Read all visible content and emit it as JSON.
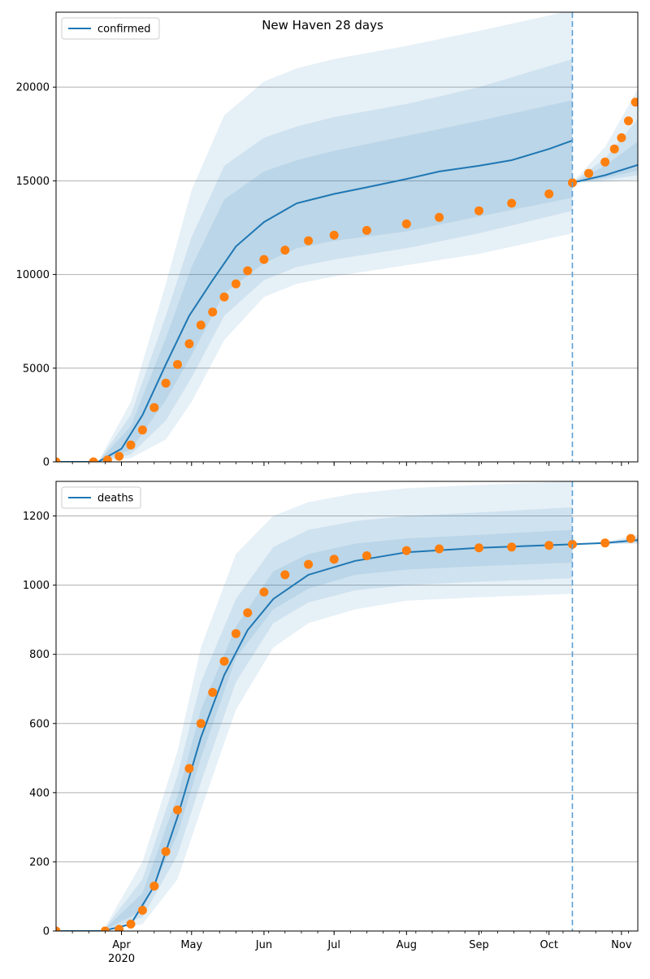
{
  "title": "New Haven 28 days",
  "chart_data": [
    {
      "type": "line",
      "legend": "confirmed",
      "legend_placement": "top-left",
      "grid": "horizontal",
      "xlim": [
        "2020-03-04",
        "2020-11-08"
      ],
      "ylim": [
        0,
        24000
      ],
      "yticks": [
        0,
        5000,
        10000,
        15000,
        20000
      ],
      "forecast_start": "2020-10-11",
      "model_median": [
        {
          "x": "2020-03-04",
          "y": 0
        },
        {
          "x": "2020-03-22",
          "y": 0
        },
        {
          "x": "2020-04-01",
          "y": 700
        },
        {
          "x": "2020-04-10",
          "y": 2500
        },
        {
          "x": "2020-04-20",
          "y": 5200
        },
        {
          "x": "2020-04-30",
          "y": 7800
        },
        {
          "x": "2020-05-10",
          "y": 9700
        },
        {
          "x": "2020-05-20",
          "y": 11500
        },
        {
          "x": "2020-06-01",
          "y": 12800
        },
        {
          "x": "2020-06-15",
          "y": 13800
        },
        {
          "x": "2020-07-01",
          "y": 14300
        },
        {
          "x": "2020-07-15",
          "y": 14650
        },
        {
          "x": "2020-08-01",
          "y": 15100
        },
        {
          "x": "2020-08-15",
          "y": 15500
        },
        {
          "x": "2020-09-01",
          "y": 15800
        },
        {
          "x": "2020-09-15",
          "y": 16100
        },
        {
          "x": "2020-10-01",
          "y": 16700
        },
        {
          "x": "2020-10-11",
          "y": 17150
        }
      ],
      "forecast_median": [
        {
          "x": "2020-10-11",
          "y": 14900
        },
        {
          "x": "2020-10-25",
          "y": 15300
        },
        {
          "x": "2020-11-08",
          "y": 15850
        }
      ],
      "bands": [
        {
          "x": [
            "2020-03-22",
            "2020-04-05",
            "2020-04-20",
            "2020-05-01",
            "2020-05-15",
            "2020-06-01",
            "2020-06-15",
            "2020-07-01",
            "2020-08-01",
            "2020-09-01",
            "2020-10-11"
          ],
          "low": [
            0,
            200,
            1200,
            3200,
            6500,
            8800,
            9500,
            9900,
            10500,
            11100,
            12200
          ],
          "high": [
            0,
            3200,
            9500,
            14500,
            18500,
            20300,
            21000,
            21500,
            22200,
            23000,
            24100
          ]
        },
        {
          "x": [
            "2020-03-22",
            "2020-04-05",
            "2020-04-20",
            "2020-05-01",
            "2020-05-15",
            "2020-06-01",
            "2020-06-15",
            "2020-07-01",
            "2020-08-01",
            "2020-09-01",
            "2020-10-11"
          ],
          "low": [
            0,
            400,
            2200,
            4500,
            7800,
            9700,
            10400,
            10800,
            11400,
            12200,
            13400
          ],
          "high": [
            0,
            2500,
            7800,
            12000,
            15800,
            17300,
            17900,
            18400,
            19100,
            20000,
            21500
          ]
        },
        {
          "x": [
            "2020-03-22",
            "2020-04-05",
            "2020-04-20",
            "2020-05-01",
            "2020-05-15",
            "2020-06-01",
            "2020-06-15",
            "2020-07-01",
            "2020-08-01",
            "2020-09-01",
            "2020-10-11"
          ],
          "low": [
            0,
            650,
            3300,
            5700,
            9000,
            10600,
            11400,
            11800,
            12300,
            13100,
            14100
          ],
          "high": [
            0,
            1900,
            6600,
            10400,
            14000,
            15500,
            16100,
            16600,
            17400,
            18200,
            19300
          ]
        }
      ],
      "forecast_bands": [
        {
          "x": [
            "2020-10-11",
            "2020-10-25",
            "2020-11-08"
          ],
          "low": [
            14900,
            14950,
            15050
          ],
          "high": [
            14900,
            16800,
            19900
          ]
        },
        {
          "x": [
            "2020-10-11",
            "2020-10-25",
            "2020-11-08"
          ],
          "low": [
            14900,
            15050,
            15300
          ],
          "high": [
            14900,
            16200,
            18300
          ]
        },
        {
          "x": [
            "2020-10-11",
            "2020-10-25",
            "2020-11-08"
          ],
          "low": [
            14900,
            15150,
            15550
          ],
          "high": [
            14900,
            15800,
            17100
          ]
        }
      ],
      "observed": [
        {
          "x": "2020-03-04",
          "y": 0
        },
        {
          "x": "2020-03-20",
          "y": 0
        },
        {
          "x": "2020-03-26",
          "y": 100
        },
        {
          "x": "2020-03-31",
          "y": 300
        },
        {
          "x": "2020-04-05",
          "y": 900
        },
        {
          "x": "2020-04-10",
          "y": 1700
        },
        {
          "x": "2020-04-15",
          "y": 2900
        },
        {
          "x": "2020-04-20",
          "y": 4200
        },
        {
          "x": "2020-04-25",
          "y": 5200
        },
        {
          "x": "2020-04-30",
          "y": 6300
        },
        {
          "x": "2020-05-05",
          "y": 7300
        },
        {
          "x": "2020-05-10",
          "y": 8000
        },
        {
          "x": "2020-05-15",
          "y": 8800
        },
        {
          "x": "2020-05-20",
          "y": 9500
        },
        {
          "x": "2020-05-25",
          "y": 10200
        },
        {
          "x": "2020-06-01",
          "y": 10800
        },
        {
          "x": "2020-06-10",
          "y": 11300
        },
        {
          "x": "2020-06-20",
          "y": 11800
        },
        {
          "x": "2020-07-01",
          "y": 12100
        },
        {
          "x": "2020-07-15",
          "y": 12350
        },
        {
          "x": "2020-08-01",
          "y": 12700
        },
        {
          "x": "2020-08-15",
          "y": 13050
        },
        {
          "x": "2020-09-01",
          "y": 13400
        },
        {
          "x": "2020-09-15",
          "y": 13800
        },
        {
          "x": "2020-10-01",
          "y": 14300
        },
        {
          "x": "2020-10-11",
          "y": 14900
        },
        {
          "x": "2020-10-18",
          "y": 15400
        },
        {
          "x": "2020-10-25",
          "y": 16000
        },
        {
          "x": "2020-10-29",
          "y": 16700
        },
        {
          "x": "2020-11-01",
          "y": 17300
        },
        {
          "x": "2020-11-04",
          "y": 18200
        },
        {
          "x": "2020-11-07",
          "y": 19200
        }
      ]
    },
    {
      "type": "line",
      "legend": "deaths",
      "legend_placement": "top-left",
      "grid": "horizontal",
      "xlim": [
        "2020-03-04",
        "2020-11-08"
      ],
      "ylim": [
        0,
        1300
      ],
      "yticks": [
        0,
        200,
        400,
        600,
        800,
        1000,
        1200
      ],
      "forecast_start": "2020-10-11",
      "model_median": [
        {
          "x": "2020-03-04",
          "y": 0
        },
        {
          "x": "2020-03-24",
          "y": 0
        },
        {
          "x": "2020-04-05",
          "y": 20
        },
        {
          "x": "2020-04-15",
          "y": 130
        },
        {
          "x": "2020-04-25",
          "y": 330
        },
        {
          "x": "2020-05-05",
          "y": 560
        },
        {
          "x": "2020-05-15",
          "y": 740
        },
        {
          "x": "2020-05-25",
          "y": 870
        },
        {
          "x": "2020-06-05",
          "y": 960
        },
        {
          "x": "2020-06-20",
          "y": 1030
        },
        {
          "x": "2020-07-10",
          "y": 1070
        },
        {
          "x": "2020-08-01",
          "y": 1095
        },
        {
          "x": "2020-09-01",
          "y": 1108
        },
        {
          "x": "2020-10-11",
          "y": 1118
        }
      ],
      "forecast_median": [
        {
          "x": "2020-10-11",
          "y": 1118
        },
        {
          "x": "2020-10-25",
          "y": 1122
        },
        {
          "x": "2020-11-08",
          "y": 1130
        }
      ],
      "bands": [
        {
          "x": [
            "2020-03-24",
            "2020-04-10",
            "2020-04-25",
            "2020-05-05",
            "2020-05-20",
            "2020-06-05",
            "2020-06-20",
            "2020-07-10",
            "2020-08-01",
            "2020-09-01",
            "2020-10-11"
          ],
          "low": [
            0,
            20,
            150,
            350,
            640,
            820,
            890,
            930,
            955,
            965,
            975
          ],
          "high": [
            0,
            200,
            520,
            820,
            1090,
            1200,
            1240,
            1265,
            1280,
            1290,
            1300
          ]
        },
        {
          "x": [
            "2020-03-24",
            "2020-04-10",
            "2020-04-25",
            "2020-05-05",
            "2020-05-20",
            "2020-06-05",
            "2020-06-20",
            "2020-07-10",
            "2020-08-01",
            "2020-09-01",
            "2020-10-11"
          ],
          "low": [
            0,
            40,
            220,
            430,
            720,
            890,
            950,
            985,
            1000,
            1010,
            1020
          ],
          "high": [
            0,
            150,
            450,
            720,
            960,
            1110,
            1160,
            1185,
            1200,
            1210,
            1225
          ]
        },
        {
          "x": [
            "2020-03-24",
            "2020-04-10",
            "2020-04-25",
            "2020-05-05",
            "2020-05-20",
            "2020-06-05",
            "2020-06-20",
            "2020-07-10",
            "2020-08-01",
            "2020-09-01",
            "2020-10-11"
          ],
          "low": [
            0,
            60,
            280,
            500,
            790,
            930,
            990,
            1030,
            1045,
            1055,
            1065
          ],
          "high": [
            0,
            110,
            390,
            640,
            880,
            1040,
            1090,
            1120,
            1135,
            1145,
            1160
          ]
        }
      ],
      "forecast_bands": [
        {
          "x": [
            "2020-10-11",
            "2020-10-25",
            "2020-11-08"
          ],
          "low": [
            1118,
            1118,
            1120
          ],
          "high": [
            1118,
            1125,
            1145
          ]
        },
        {
          "x": [
            "2020-10-11",
            "2020-10-25",
            "2020-11-08"
          ],
          "low": [
            1118,
            1119,
            1122
          ],
          "high": [
            1118,
            1123,
            1138
          ]
        }
      ],
      "observed": [
        {
          "x": "2020-03-04",
          "y": 0
        },
        {
          "x": "2020-03-25",
          "y": 0
        },
        {
          "x": "2020-03-31",
          "y": 5
        },
        {
          "x": "2020-04-05",
          "y": 20
        },
        {
          "x": "2020-04-10",
          "y": 60
        },
        {
          "x": "2020-04-15",
          "y": 130
        },
        {
          "x": "2020-04-20",
          "y": 230
        },
        {
          "x": "2020-04-25",
          "y": 350
        },
        {
          "x": "2020-04-30",
          "y": 470
        },
        {
          "x": "2020-05-05",
          "y": 600
        },
        {
          "x": "2020-05-10",
          "y": 690
        },
        {
          "x": "2020-05-15",
          "y": 780
        },
        {
          "x": "2020-05-20",
          "y": 860
        },
        {
          "x": "2020-05-25",
          "y": 920
        },
        {
          "x": "2020-06-01",
          "y": 980
        },
        {
          "x": "2020-06-10",
          "y": 1030
        },
        {
          "x": "2020-06-20",
          "y": 1060
        },
        {
          "x": "2020-07-01",
          "y": 1075
        },
        {
          "x": "2020-07-15",
          "y": 1085
        },
        {
          "x": "2020-08-01",
          "y": 1100
        },
        {
          "x": "2020-08-15",
          "y": 1105
        },
        {
          "x": "2020-09-01",
          "y": 1108
        },
        {
          "x": "2020-09-15",
          "y": 1110
        },
        {
          "x": "2020-10-01",
          "y": 1115
        },
        {
          "x": "2020-10-11",
          "y": 1118
        },
        {
          "x": "2020-10-25",
          "y": 1122
        },
        {
          "x": "2020-11-05",
          "y": 1135
        }
      ]
    }
  ],
  "x_ticks": [
    {
      "date": "2020-04-01",
      "label": "Apr"
    },
    {
      "date": "2020-05-01",
      "label": "May"
    },
    {
      "date": "2020-06-01",
      "label": "Jun"
    },
    {
      "date": "2020-07-01",
      "label": "Jul"
    },
    {
      "date": "2020-08-01",
      "label": "Aug"
    },
    {
      "date": "2020-09-01",
      "label": "Sep"
    },
    {
      "date": "2020-10-01",
      "label": "Oct"
    },
    {
      "date": "2020-11-01",
      "label": "Nov"
    }
  ],
  "x_year_label": "2020",
  "colors": {
    "model": "#1f77b4",
    "observed": "#ff7f0e",
    "band": "#1f77b4",
    "grid": "#b0b0b0",
    "forecast_line": "#5a9fd6"
  }
}
